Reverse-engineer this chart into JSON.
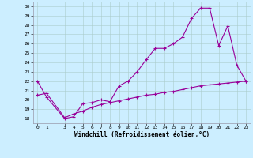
{
  "xlabel": "Windchill (Refroidissement éolien,°C)",
  "bg_color": "#cceeff",
  "line_color": "#990099",
  "x_main": [
    0,
    1,
    3,
    4,
    5,
    6,
    7,
    8,
    9,
    10,
    11,
    12,
    13,
    14,
    15,
    16,
    17,
    18,
    19,
    20,
    21,
    22,
    23
  ],
  "y_main": [
    22,
    20.3,
    18,
    18.2,
    19.6,
    19.7,
    20,
    19.8,
    21.5,
    22,
    23,
    24.3,
    25.5,
    25.5,
    26.0,
    26.7,
    28.7,
    29.8,
    29.8,
    25.8,
    27.9,
    23.7,
    22
  ],
  "x_line2": [
    0,
    1,
    3,
    4,
    5,
    6,
    7,
    8,
    9,
    10,
    11,
    12,
    13,
    14,
    15,
    16,
    17,
    18,
    19,
    20,
    21,
    22,
    23
  ],
  "y_line2": [
    20.5,
    20.7,
    18.1,
    18.5,
    18.8,
    19.2,
    19.5,
    19.7,
    19.9,
    20.1,
    20.3,
    20.5,
    20.6,
    20.8,
    20.9,
    21.1,
    21.3,
    21.5,
    21.6,
    21.7,
    21.8,
    21.9,
    22
  ],
  "xlim": [
    -0.5,
    23.5
  ],
  "ylim": [
    17.5,
    30.5
  ],
  "yticks": [
    18,
    19,
    20,
    21,
    22,
    23,
    24,
    25,
    26,
    27,
    28,
    29,
    30
  ],
  "xticks": [
    0,
    1,
    3,
    4,
    5,
    6,
    7,
    8,
    9,
    10,
    11,
    12,
    13,
    14,
    15,
    16,
    17,
    18,
    19,
    20,
    21,
    22,
    23
  ],
  "grid_color": "#aacccc",
  "spine_color": "#9999aa"
}
